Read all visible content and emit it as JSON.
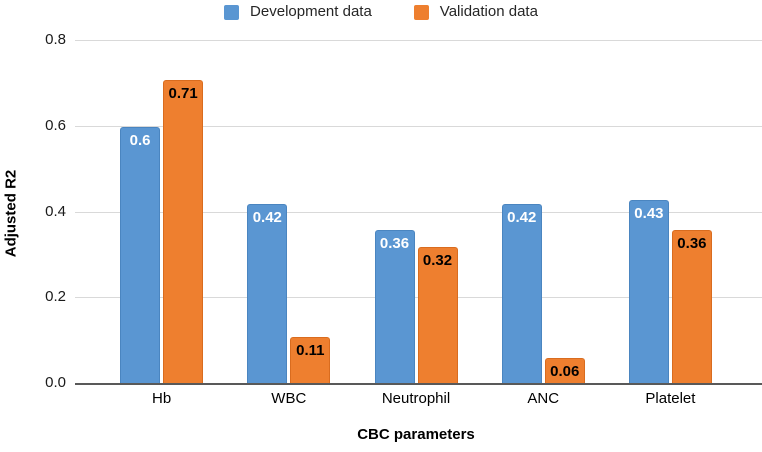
{
  "chart_data": {
    "type": "bar",
    "categories": [
      "Hb",
      "WBC",
      "Neutrophil",
      "ANC",
      "Platelet"
    ],
    "series": [
      {
        "name": "Development data",
        "color": "#5a96d2",
        "border_color": "#4a85c0",
        "label_color": "#ffffff",
        "values": [
          0.6,
          0.42,
          0.36,
          0.42,
          0.43
        ],
        "labels": [
          "0.6",
          "0.42",
          "0.36",
          "0.42",
          "0.43"
        ]
      },
      {
        "name": "Validation data",
        "color": "#ee7f2f",
        "border_color": "#d96c1f",
        "label_color": "#000000",
        "values": [
          0.71,
          0.11,
          0.32,
          0.06,
          0.36
        ],
        "labels": [
          "0.71",
          "0.11",
          "0.32",
          "0.06",
          "0.36"
        ]
      }
    ],
    "xlabel": "CBC parameters",
    "ylabel": "Adjusted R2",
    "ylim": [
      0,
      0.8
    ],
    "yticks": [
      0.0,
      0.2,
      0.4,
      0.6,
      0.8
    ],
    "ytick_labels": [
      "0.0",
      "0.2",
      "0.4",
      "0.6",
      "0.8"
    ],
    "grid": true,
    "gridline_color": "#d9d9d9",
    "axis_line_color": "#595959",
    "legend_position": "top",
    "data_labels": true
  }
}
